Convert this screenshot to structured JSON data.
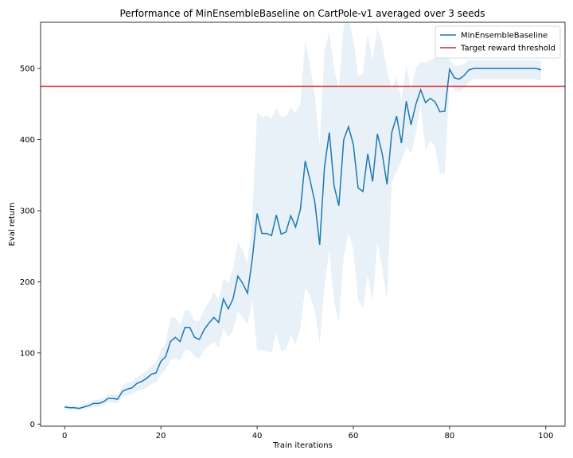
{
  "chart_data": {
    "type": "line",
    "title": "Performance of MinEnsembleBaseline on CartPole-v1 averaged over 3 seeds",
    "xlabel": "Train iterations",
    "ylabel": "Eval return",
    "xlim": [
      -5,
      104
    ],
    "ylim": [
      -3,
      565
    ],
    "xticks": [
      0,
      20,
      40,
      60,
      80,
      100
    ],
    "yticks": [
      0,
      100,
      200,
      300,
      400,
      500
    ],
    "grid": false,
    "legend": "top-right",
    "x": [
      0,
      1,
      2,
      3,
      4,
      5,
      6,
      7,
      8,
      9,
      10,
      11,
      12,
      13,
      14,
      15,
      16,
      17,
      18,
      19,
      20,
      21,
      22,
      23,
      24,
      25,
      26,
      27,
      28,
      29,
      30,
      31,
      32,
      33,
      34,
      35,
      36,
      37,
      38,
      39,
      40,
      41,
      42,
      43,
      44,
      45,
      46,
      47,
      48,
      49,
      50,
      51,
      52,
      53,
      54,
      55,
      56,
      57,
      58,
      59,
      60,
      61,
      62,
      63,
      64,
      65,
      66,
      67,
      68,
      69,
      70,
      71,
      72,
      73,
      74,
      75,
      76,
      77,
      78,
      79,
      80,
      81,
      82,
      83,
      84,
      85,
      86,
      87,
      88,
      89,
      90,
      91,
      92,
      93,
      94,
      95,
      96,
      97,
      98,
      99
    ],
    "series": [
      {
        "name": "MinEnsembleBaseline",
        "color": "#1f77b4",
        "values": [
          24,
          23,
          23,
          22,
          24,
          26,
          29,
          29,
          31,
          36,
          36,
          35,
          46,
          49,
          51,
          57,
          60,
          64,
          70,
          72,
          88,
          95,
          116,
          122,
          116,
          136,
          136,
          122,
          119,
          133,
          142,
          150,
          143,
          176,
          162,
          176,
          208,
          198,
          184,
          232,
          296,
          268,
          268,
          265,
          294,
          267,
          270,
          293,
          277,
          302,
          370,
          343,
          312,
          252,
          361,
          410,
          335,
          307,
          400,
          418,
          393,
          332,
          327,
          380,
          341,
          408,
          380,
          337,
          410,
          433,
          395,
          454,
          421,
          450,
          470,
          452,
          458,
          453,
          439,
          440,
          499,
          487,
          485,
          490,
          498,
          500,
          500,
          500,
          500,
          500,
          500,
          500,
          500,
          500,
          500,
          500,
          500,
          500,
          500,
          498
        ],
        "band_lower": [
          20,
          20,
          20,
          19,
          20,
          22,
          24,
          24,
          26,
          30,
          30,
          29,
          38,
          40,
          42,
          46,
          48,
          51,
          56,
          58,
          70,
          76,
          90,
          92,
          90,
          104,
          104,
          95,
          92,
          104,
          110,
          115,
          108,
          135,
          122,
          132,
          158,
          150,
          140,
          175,
          104,
          104,
          102,
          100,
          128,
          102,
          105,
          124,
          112,
          135,
          192,
          180,
          160,
          112,
          195,
          244,
          172,
          143,
          235,
          270,
          245,
          175,
          162,
          210,
          172,
          256,
          218,
          175,
          340,
          355,
          370,
          390,
          380,
          410,
          448,
          385,
          398,
          390,
          352,
          352,
          480,
          470,
          468,
          472,
          480,
          485,
          485,
          485,
          485,
          485,
          485,
          485,
          485,
          485,
          485,
          485,
          485,
          485,
          485,
          483
        ],
        "band_upper": [
          28,
          26,
          26,
          25,
          28,
          30,
          34,
          34,
          36,
          42,
          42,
          41,
          54,
          58,
          60,
          66,
          70,
          75,
          82,
          86,
          104,
          114,
          150,
          150,
          140,
          160,
          160,
          145,
          145,
          160,
          172,
          185,
          175,
          205,
          198,
          218,
          255,
          245,
          225,
          288,
          438,
          432,
          434,
          430,
          445,
          432,
          433,
          445,
          438,
          452,
          540,
          505,
          462,
          392,
          525,
          552,
          500,
          472,
          560,
          568,
          541,
          490,
          492,
          550,
          510,
          558,
          535,
          497,
          470,
          490,
          455,
          505,
          470,
          500,
          510,
          508,
          512,
          515,
          525,
          527,
          512,
          505,
          504,
          506,
          512,
          512,
          512,
          512,
          512,
          512,
          512,
          512,
          512,
          512,
          512,
          512,
          512,
          512,
          512,
          510
        ]
      }
    ],
    "hlines": [
      {
        "name": "Target reward threshold",
        "y": 475,
        "color": "#d62728"
      }
    ]
  }
}
